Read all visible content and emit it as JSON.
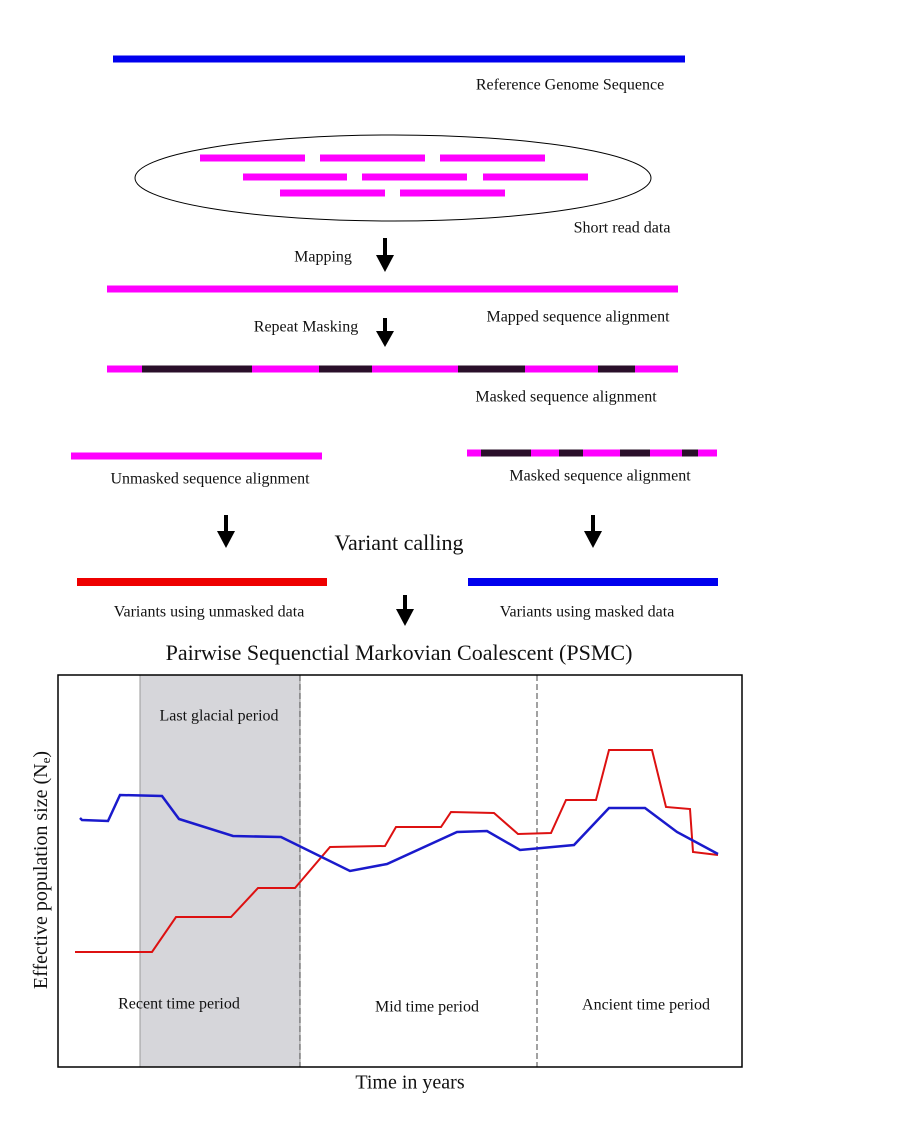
{
  "steps": {
    "reference": "Reference Genome Sequence",
    "short_reads": "Short read data",
    "mapping": "Mapping",
    "mapped": "Mapped sequence alignment",
    "repeat_masking": "Repeat Masking",
    "masked": "Masked sequence alignment",
    "unmasked_split": "Unmasked sequence alignment",
    "masked_split": "Masked sequence alignment",
    "variant_calling": "Variant calling",
    "variants_unmasked": "Variants using unmasked data",
    "variants_masked": "Variants using masked data",
    "psmc": "Pairwise Sequenctial Markovian Coalescent (PSMC)"
  },
  "plot": {
    "shaded_label": "Last glacial period",
    "periods": [
      "Recent time period",
      "Mid time period",
      "Ancient time period"
    ],
    "x_label": "Time in years",
    "y_label": "Effective population size (N",
    "y_label_sub": "e",
    "y_label_end": ")"
  }
}
